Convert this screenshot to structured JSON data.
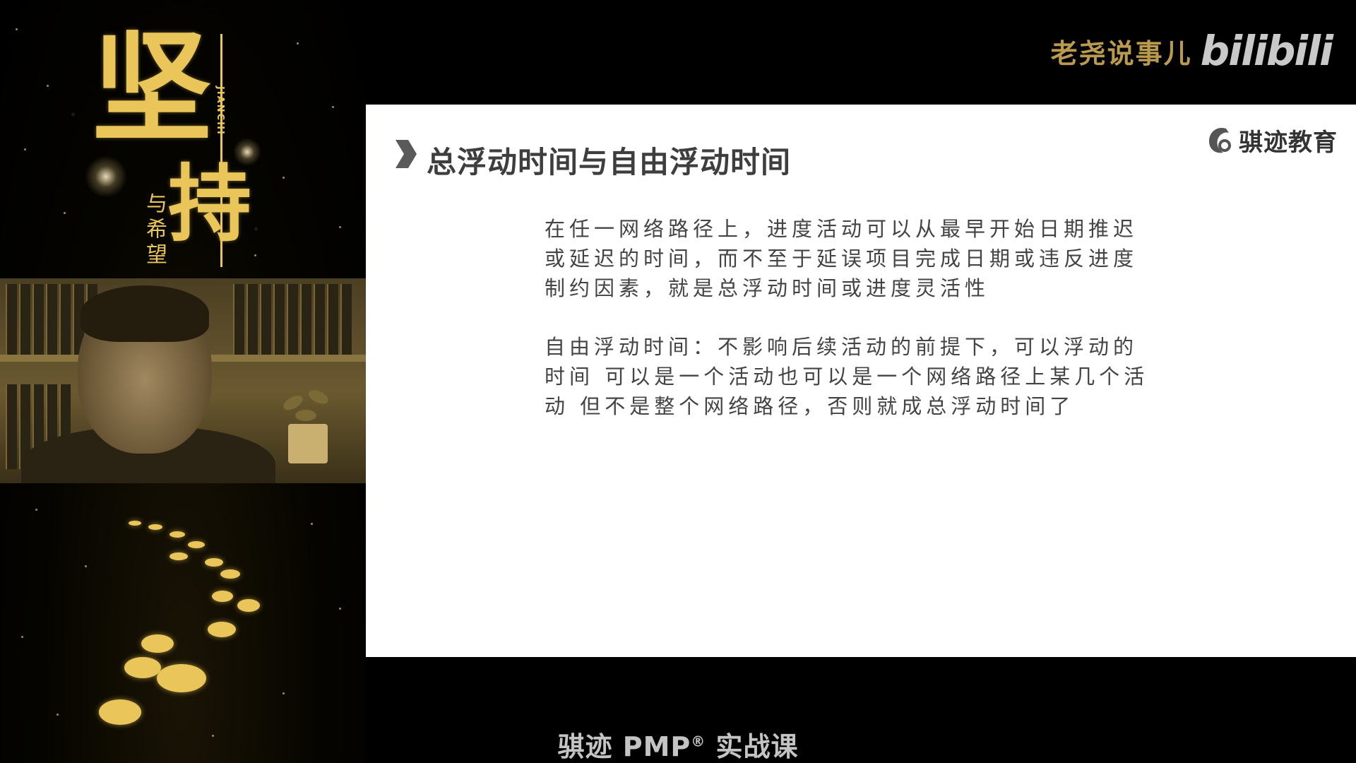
{
  "brand": {
    "channel_name": "老尧说事儿",
    "platform_logo": "bilibili"
  },
  "poster": {
    "title_main": "坚",
    "title_sub": "持",
    "pinyin": "JIANCHI",
    "title_small": "与希望",
    "accent_color": "#e9c55a"
  },
  "slide": {
    "title": "总浮动时间与自由浮动时间",
    "logo_text": "骐迹教育",
    "paragraphs": [
      {
        "lines": [
          " 在任一网络路径上，进度活动可以从最早开始日期推迟",
          "或延迟的时间，而不至于延误项目完成日期或违反进度",
          "制约因素，就是总浮动时间或进度灵活性"
        ]
      },
      {
        "lines": [
          " 自由浮动时间：不影响后续活动的前提下，可以浮动的",
          "时间 可以是一个活动也可以是一个网络路径上某几个活",
          "动 但不是整个网络路径，否则就成总浮动时间了"
        ]
      }
    ]
  },
  "caption": {
    "text": "骐迹 PMP",
    "mark": "®",
    "suffix": " 实战课"
  }
}
